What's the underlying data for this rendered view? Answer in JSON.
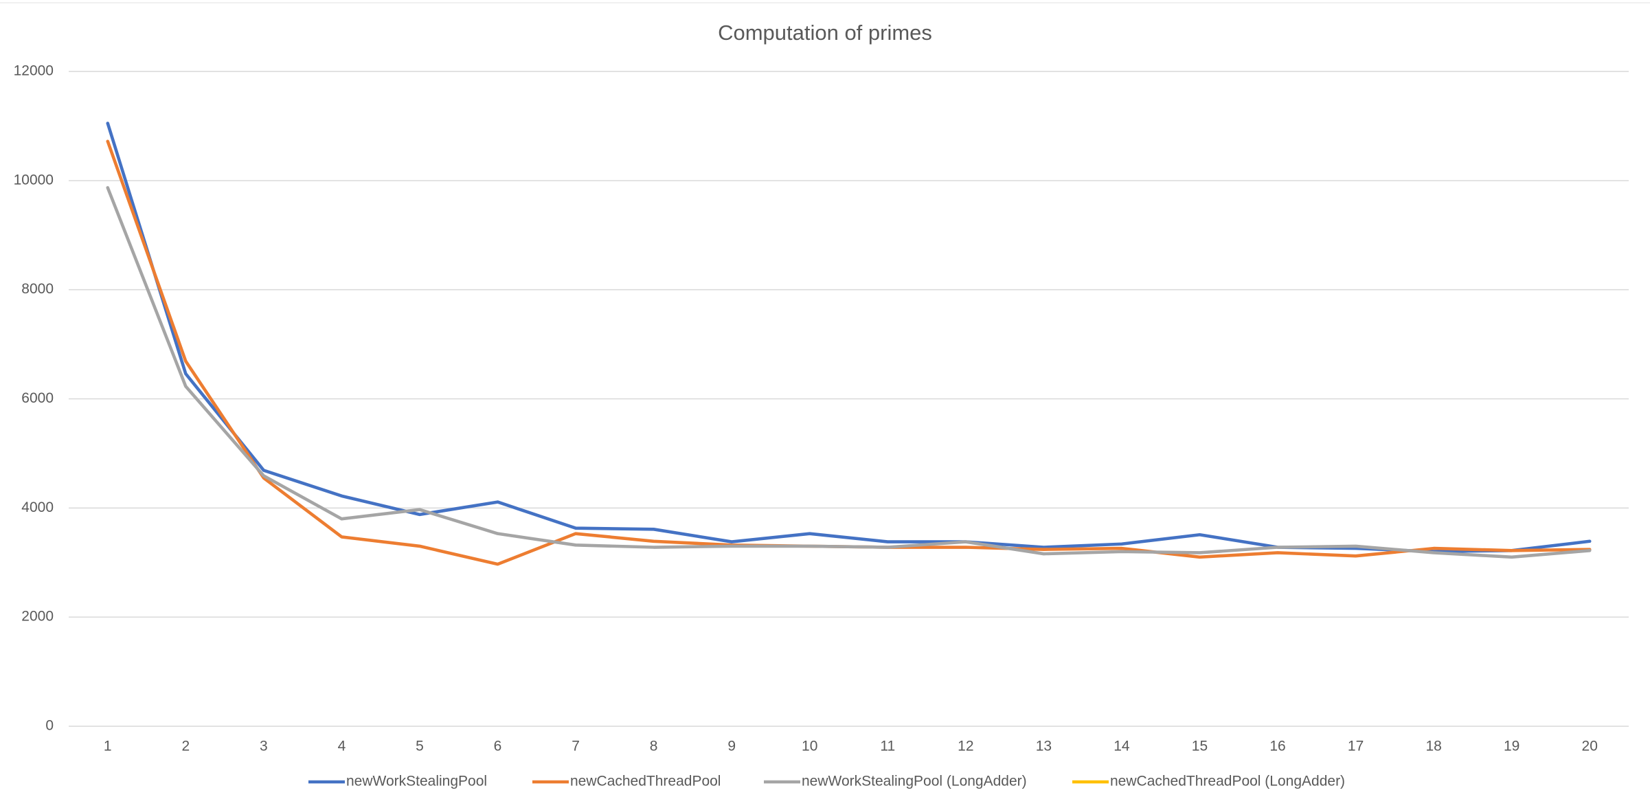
{
  "chart_data": {
    "type": "line",
    "title": "Computation of primes",
    "categories": [
      1,
      2,
      3,
      4,
      5,
      6,
      7,
      8,
      9,
      10,
      11,
      12,
      13,
      14,
      15,
      16,
      17,
      18,
      19,
      20
    ],
    "series": [
      {
        "name": "newWorkStealingPool",
        "color": "#4472c4",
        "values": [
          11050,
          6460,
          4690,
          4220,
          3880,
          4110,
          3630,
          3610,
          3380,
          3530,
          3380,
          3380,
          3280,
          3340,
          3510,
          3280,
          3260,
          3200,
          3220,
          3390
        ]
      },
      {
        "name": "newCachedThreadPool",
        "color": "#ed7d31",
        "values": [
          10720,
          6690,
          4550,
          3470,
          3300,
          2970,
          3530,
          3390,
          3320,
          3300,
          3280,
          3280,
          3240,
          3260,
          3100,
          3180,
          3120,
          3260,
          3220,
          3240
        ]
      },
      {
        "name": "newWorkStealingPool (LongAdder)",
        "color": "#a5a5a5",
        "values": [
          9870,
          6230,
          4590,
          3800,
          3970,
          3530,
          3320,
          3280,
          3300,
          3300,
          3280,
          3380,
          3160,
          3200,
          3180,
          3280,
          3300,
          3180,
          3100,
          3220
        ]
      },
      {
        "name": "newCachedThreadPool (LongAdder)",
        "color": "#ffc000",
        "values": [
          null,
          null,
          null,
          null,
          null,
          null,
          null,
          null,
          null,
          null,
          null,
          null,
          null,
          null,
          null,
          null,
          null,
          null,
          null,
          null
        ]
      }
    ],
    "ylim": [
      0,
      12000
    ],
    "yticks": [
      0,
      2000,
      4000,
      6000,
      8000,
      10000,
      12000
    ],
    "grid": true,
    "legend": "bottom"
  }
}
